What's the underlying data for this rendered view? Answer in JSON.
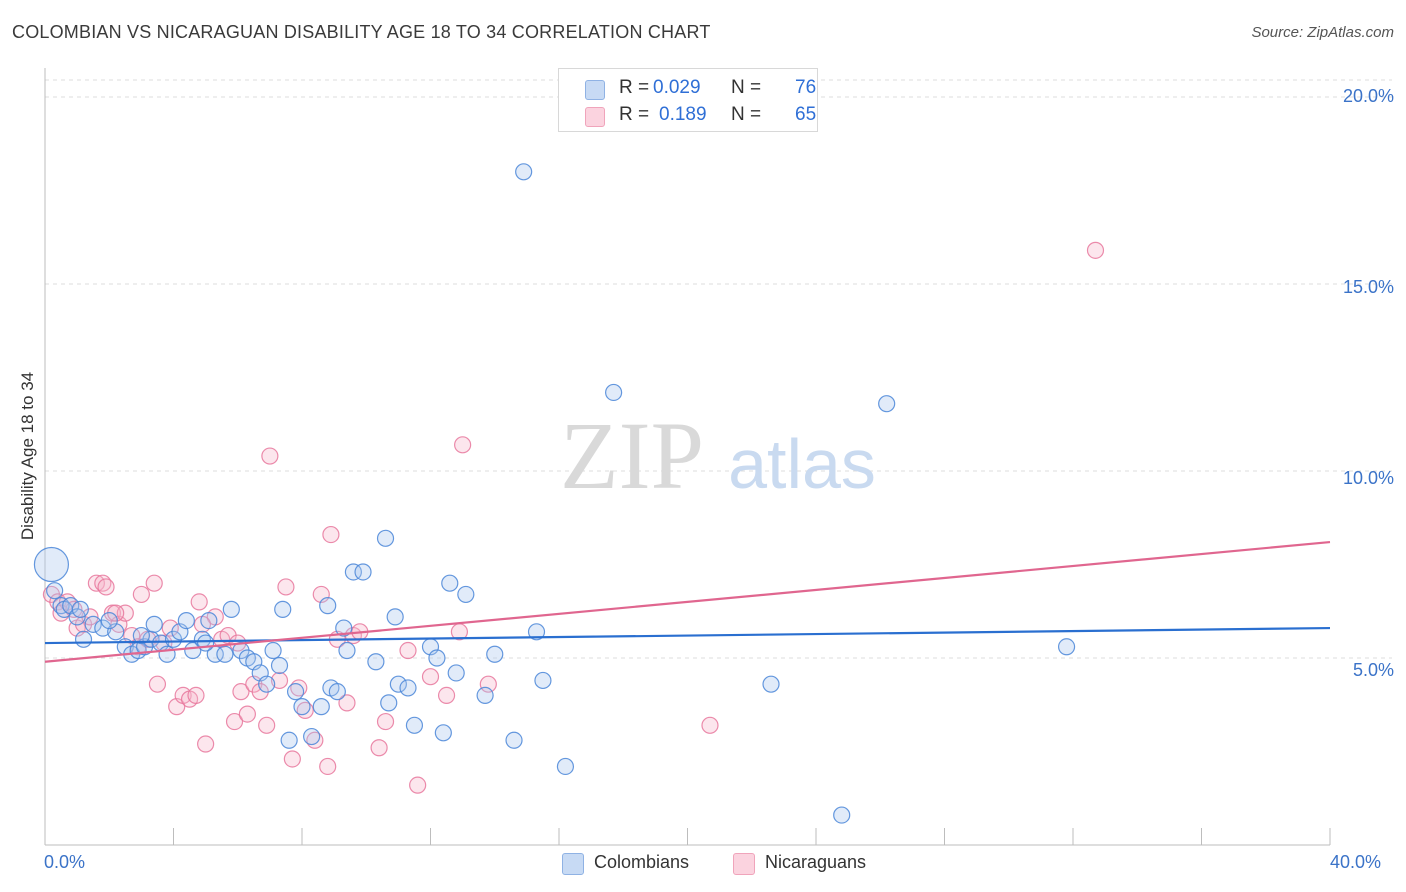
{
  "header": {
    "title": "COLOMBIAN VS NICARAGUAN DISABILITY AGE 18 TO 34 CORRELATION CHART",
    "source": "Source: ZipAtlas.com"
  },
  "watermark": {
    "zip": "ZIP",
    "atlas": "atlas"
  },
  "legend": {
    "rows": [
      {
        "r_label": "R =",
        "r_value": "0.029",
        "n_label": "N =",
        "n_value": "76",
        "color": "#a9c7ee"
      },
      {
        "r_label": "R =",
        "r_value": "0.189",
        "n_label": "N =",
        "n_value": "65",
        "color": "#f6b8cb"
      }
    ]
  },
  "bottom_legend": [
    {
      "label": "Colombians",
      "color": "#a9c7ee"
    },
    {
      "label": "Nicaraguans",
      "color": "#f6b8cb"
    }
  ],
  "chart_data": {
    "type": "scatter",
    "title": "COLOMBIAN VS NICARAGUAN DISABILITY AGE 18 TO 34 CORRELATION CHART",
    "xlabel": "",
    "ylabel": "Disability Age 18 to 34",
    "xlim": [
      0,
      40
    ],
    "ylim": [
      0,
      20
    ],
    "x_tick_labels": [
      "0.0%",
      "40.0%"
    ],
    "y_ticks": [
      5,
      10,
      15,
      20
    ],
    "y_tick_labels": [
      "5.0%",
      "10.0%",
      "15.0%",
      "20.0%"
    ],
    "grid": "horizontal dashed",
    "legend_position": "top-center",
    "colors": {
      "colombians": "#4a86d8",
      "nicaraguans": "#e8779c",
      "colombians_line": "#2a6fd0",
      "nicaraguans_line": "#e0668f"
    },
    "series": [
      {
        "name": "Colombians",
        "trend": {
          "x": [
            0,
            40
          ],
          "y": [
            5.4,
            5.8
          ]
        },
        "points": [
          [
            0.2,
            7.5
          ],
          [
            0.3,
            6.8
          ],
          [
            0.5,
            6.4
          ],
          [
            0.6,
            6.3
          ],
          [
            0.8,
            6.4
          ],
          [
            1.0,
            6.1
          ],
          [
            1.2,
            5.5
          ],
          [
            1.5,
            5.9
          ],
          [
            1.8,
            5.8
          ],
          [
            2.2,
            5.7
          ],
          [
            2.5,
            5.3
          ],
          [
            2.7,
            5.1
          ],
          [
            2.9,
            5.2
          ],
          [
            3.1,
            5.3
          ],
          [
            3.3,
            5.5
          ],
          [
            3.4,
            5.9
          ],
          [
            3.6,
            5.4
          ],
          [
            3.8,
            5.1
          ],
          [
            4.0,
            5.5
          ],
          [
            4.2,
            5.7
          ],
          [
            4.4,
            6.0
          ],
          [
            4.6,
            5.2
          ],
          [
            4.9,
            5.5
          ],
          [
            5.1,
            6.0
          ],
          [
            5.3,
            5.1
          ],
          [
            5.6,
            5.1
          ],
          [
            5.8,
            6.3
          ],
          [
            6.1,
            5.2
          ],
          [
            6.3,
            5.0
          ],
          [
            6.5,
            4.9
          ],
          [
            6.7,
            4.6
          ],
          [
            6.9,
            4.3
          ],
          [
            7.1,
            5.2
          ],
          [
            7.3,
            4.8
          ],
          [
            7.6,
            2.8
          ],
          [
            7.8,
            4.1
          ],
          [
            8.0,
            3.7
          ],
          [
            8.3,
            2.9
          ],
          [
            8.6,
            3.7
          ],
          [
            8.9,
            4.2
          ],
          [
            9.1,
            4.1
          ],
          [
            9.4,
            5.2
          ],
          [
            9.6,
            7.3
          ],
          [
            9.9,
            7.3
          ],
          [
            10.3,
            4.9
          ],
          [
            10.6,
            8.2
          ],
          [
            10.7,
            3.8
          ],
          [
            11.0,
            4.3
          ],
          [
            11.3,
            4.2
          ],
          [
            11.5,
            3.2
          ],
          [
            12.0,
            5.3
          ],
          [
            12.2,
            5.0
          ],
          [
            12.4,
            3.0
          ],
          [
            12.6,
            7.0
          ],
          [
            12.8,
            4.6
          ],
          [
            13.1,
            6.7
          ],
          [
            13.7,
            4.0
          ],
          [
            14.0,
            5.1
          ],
          [
            14.6,
            2.8
          ],
          [
            14.9,
            18.0
          ],
          [
            15.3,
            5.7
          ],
          [
            15.5,
            4.4
          ],
          [
            16.2,
            2.1
          ],
          [
            17.7,
            12.1
          ],
          [
            22.6,
            4.3
          ],
          [
            24.8,
            0.8
          ],
          [
            26.2,
            11.8
          ],
          [
            31.8,
            5.3
          ],
          [
            7.4,
            6.3
          ],
          [
            9.3,
            5.8
          ],
          [
            10.9,
            6.1
          ],
          [
            8.8,
            6.4
          ],
          [
            2.0,
            6.0
          ],
          [
            1.1,
            6.3
          ],
          [
            3.0,
            5.6
          ],
          [
            5.0,
            5.4
          ]
        ]
      },
      {
        "name": "Nicaraguans",
        "trend": {
          "x": [
            0,
            40
          ],
          "y": [
            4.9,
            8.1
          ]
        },
        "points": [
          [
            0.2,
            6.7
          ],
          [
            0.4,
            6.5
          ],
          [
            0.5,
            6.2
          ],
          [
            0.7,
            6.5
          ],
          [
            0.9,
            6.3
          ],
          [
            1.0,
            5.8
          ],
          [
            1.2,
            5.9
          ],
          [
            1.4,
            6.1
          ],
          [
            1.6,
            7.0
          ],
          [
            1.8,
            7.0
          ],
          [
            1.9,
            6.9
          ],
          [
            2.1,
            6.2
          ],
          [
            2.3,
            5.9
          ],
          [
            2.5,
            6.2
          ],
          [
            2.7,
            5.6
          ],
          [
            2.9,
            5.3
          ],
          [
            3.0,
            6.7
          ],
          [
            3.2,
            5.5
          ],
          [
            3.4,
            7.0
          ],
          [
            3.5,
            4.3
          ],
          [
            3.7,
            5.4
          ],
          [
            3.9,
            5.8
          ],
          [
            4.1,
            3.7
          ],
          [
            4.3,
            4.0
          ],
          [
            4.5,
            3.9
          ],
          [
            4.7,
            4.0
          ],
          [
            4.8,
            6.5
          ],
          [
            5.0,
            2.7
          ],
          [
            5.3,
            6.1
          ],
          [
            5.5,
            5.5
          ],
          [
            5.7,
            5.6
          ],
          [
            5.9,
            3.3
          ],
          [
            6.1,
            4.1
          ],
          [
            6.3,
            3.5
          ],
          [
            6.5,
            4.3
          ],
          [
            6.7,
            4.1
          ],
          [
            6.9,
            3.2
          ],
          [
            7.0,
            10.4
          ],
          [
            7.3,
            4.4
          ],
          [
            7.5,
            6.9
          ],
          [
            7.7,
            2.3
          ],
          [
            7.9,
            4.2
          ],
          [
            8.1,
            3.6
          ],
          [
            8.4,
            2.8
          ],
          [
            8.6,
            6.7
          ],
          [
            8.8,
            2.1
          ],
          [
            8.9,
            8.3
          ],
          [
            9.1,
            5.5
          ],
          [
            9.4,
            3.8
          ],
          [
            9.6,
            5.6
          ],
          [
            9.8,
            5.7
          ],
          [
            10.4,
            2.6
          ],
          [
            10.6,
            3.3
          ],
          [
            11.3,
            5.2
          ],
          [
            11.6,
            1.6
          ],
          [
            12.0,
            4.5
          ],
          [
            12.5,
            4.0
          ],
          [
            12.9,
            5.7
          ],
          [
            13.0,
            10.7
          ],
          [
            13.8,
            4.3
          ],
          [
            20.7,
            3.2
          ],
          [
            32.7,
            15.9
          ],
          [
            2.2,
            6.2
          ],
          [
            4.9,
            5.9
          ],
          [
            6.0,
            5.4
          ]
        ]
      }
    ]
  }
}
